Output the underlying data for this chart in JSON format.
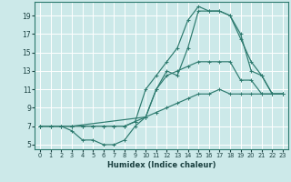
{
  "bg_color": "#cce9e9",
  "grid_color": "#ffffff",
  "line_color": "#2d7a6e",
  "xlabel": "Humidex (Indice chaleur)",
  "xlim": [
    -0.5,
    23.5
  ],
  "ylim": [
    4.5,
    20.5
  ],
  "xticks": [
    0,
    1,
    2,
    3,
    4,
    5,
    6,
    7,
    8,
    9,
    10,
    11,
    12,
    13,
    14,
    15,
    16,
    17,
    18,
    19,
    20,
    21,
    22,
    23
  ],
  "yticks": [
    5,
    7,
    9,
    11,
    13,
    15,
    17,
    19
  ],
  "line1_x": [
    0,
    1,
    2,
    3,
    4,
    5,
    6,
    7,
    8,
    9,
    10,
    11,
    12,
    13,
    14,
    15,
    16,
    17,
    18,
    19,
    20,
    21,
    22,
    23
  ],
  "line1_y": [
    7.0,
    7.0,
    7.0,
    7.0,
    7.0,
    7.0,
    7.0,
    7.0,
    7.0,
    7.5,
    8.0,
    8.5,
    9.0,
    9.5,
    10.0,
    10.5,
    10.5,
    11.0,
    10.5,
    10.5,
    10.5,
    10.5,
    10.5,
    10.5
  ],
  "line2_x": [
    0,
    1,
    2,
    3,
    4,
    5,
    6,
    7,
    8,
    9,
    10,
    11,
    12,
    13,
    14,
    15,
    16,
    17,
    18,
    19,
    20,
    21,
    22,
    23
  ],
  "line2_y": [
    7.0,
    7.0,
    7.0,
    6.5,
    5.5,
    5.5,
    5.0,
    5.0,
    5.5,
    7.0,
    8.0,
    11.0,
    12.5,
    13.0,
    13.5,
    14.0,
    14.0,
    14.0,
    14.0,
    12.0,
    12.0,
    10.5,
    10.5,
    10.5
  ],
  "line3_x": [
    0,
    1,
    2,
    3,
    4,
    5,
    6,
    7,
    8,
    9,
    10,
    11,
    12,
    13,
    14,
    15,
    16,
    17,
    18,
    19,
    20,
    21,
    22,
    23
  ],
  "line3_y": [
    7.0,
    7.0,
    7.0,
    7.0,
    7.0,
    7.0,
    7.0,
    7.0,
    7.0,
    7.5,
    11.0,
    12.5,
    14.0,
    15.5,
    18.5,
    20.0,
    19.5,
    19.5,
    19.0,
    17.0,
    13.0,
    12.5,
    10.5,
    10.5
  ],
  "line4_x": [
    0,
    2,
    3,
    10,
    11,
    12,
    13,
    14,
    15,
    16,
    17,
    18,
    19,
    20,
    21,
    22,
    23
  ],
  "line4_y": [
    7.0,
    7.0,
    7.0,
    8.0,
    11.0,
    13.0,
    12.5,
    15.5,
    19.5,
    19.5,
    19.5,
    19.0,
    16.5,
    14.0,
    12.5,
    10.5,
    10.5
  ]
}
